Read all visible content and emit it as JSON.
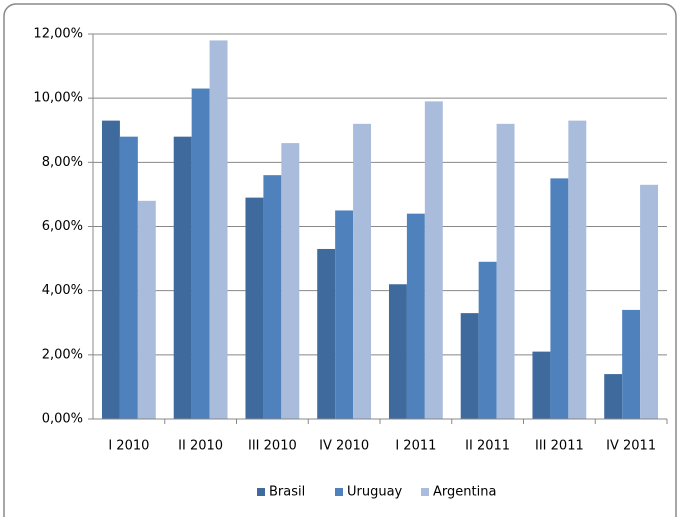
{
  "chart_data": {
    "type": "bar",
    "categories": [
      "I 2010",
      "II 2010",
      "III 2010",
      "IV 2010",
      "I 2011",
      "II 2011",
      "III 2011",
      "IV 2011"
    ],
    "series": [
      {
        "name": "Brasil",
        "color": "#3f6a9e",
        "values": [
          9.3,
          8.8,
          6.9,
          5.3,
          4.2,
          3.3,
          2.1,
          1.4
        ]
      },
      {
        "name": "Uruguay",
        "color": "#4f81bd",
        "values": [
          8.8,
          10.3,
          7.6,
          6.5,
          6.4,
          4.9,
          7.5,
          3.4
        ]
      },
      {
        "name": "Argentina",
        "color": "#a9bcdc",
        "values": [
          6.8,
          11.8,
          8.6,
          9.2,
          9.9,
          9.2,
          9.3,
          7.3
        ]
      }
    ],
    "ylim": [
      0,
      12
    ],
    "yticks": [
      {
        "value": 0,
        "label": "0,00%"
      },
      {
        "value": 2,
        "label": "2,00%"
      },
      {
        "value": 4,
        "label": "4,00%"
      },
      {
        "value": 6,
        "label": "6,00%"
      },
      {
        "value": 8,
        "label": "8,00%"
      },
      {
        "value": 10,
        "label": "10,00%"
      },
      {
        "value": 12,
        "label": "12,00%"
      }
    ],
    "grid": true,
    "legend": "bottom"
  }
}
